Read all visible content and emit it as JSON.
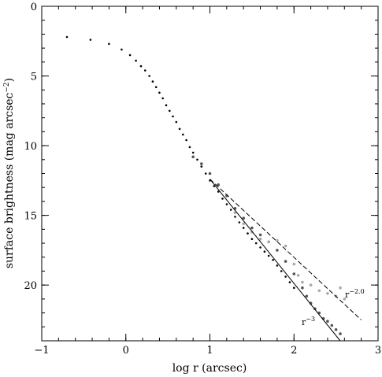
{
  "chart_data": {
    "type": "scatter",
    "title": "",
    "xlabel": "log r (arcsec)",
    "ylabel": "surface brightness (mag arcsec",
    "ylabel_sup": "−2",
    "ylabel_close": ")",
    "xlim": [
      -1,
      3
    ],
    "ylim": [
      24,
      0
    ],
    "y_inverted": true,
    "x_ticks": [
      -1,
      0,
      1,
      2,
      3
    ],
    "x_tick_labels": [
      "−1",
      "0",
      "1",
      "2",
      "3"
    ],
    "y_ticks": [
      0,
      5,
      10,
      15,
      20
    ],
    "y_tick_labels": [
      "0",
      "5",
      "10",
      "15",
      "20"
    ],
    "grid": false,
    "colors": {
      "inner": "#000000",
      "dark_scatter": "#555555",
      "light_scatter": "#aaaaaa",
      "reference_lines": "#000000"
    },
    "series": [
      {
        "style": "black-points",
        "points": [
          [
            -0.7,
            2.2
          ],
          [
            -0.42,
            2.4
          ],
          [
            -0.2,
            2.7
          ],
          [
            -0.05,
            3.1
          ],
          [
            0.05,
            3.5
          ],
          [
            0.12,
            3.9
          ],
          [
            0.18,
            4.3
          ],
          [
            0.23,
            4.6
          ],
          [
            0.28,
            5.0
          ],
          [
            0.32,
            5.4
          ],
          [
            0.36,
            5.8
          ],
          [
            0.4,
            6.2
          ],
          [
            0.44,
            6.6
          ],
          [
            0.48,
            7.1
          ],
          [
            0.52,
            7.5
          ],
          [
            0.56,
            7.9
          ],
          [
            0.6,
            8.3
          ],
          [
            0.64,
            8.8
          ],
          [
            0.68,
            9.2
          ],
          [
            0.72,
            9.6
          ],
          [
            0.76,
            10.1
          ],
          [
            0.8,
            10.5
          ],
          [
            0.85,
            11.0
          ],
          [
            0.9,
            11.5
          ],
          [
            0.95,
            12.0
          ],
          [
            1.0,
            12.5
          ],
          [
            1.05,
            12.9
          ],
          [
            1.1,
            13.3
          ],
          [
            1.15,
            13.8
          ],
          [
            1.2,
            14.2
          ],
          [
            1.25,
            14.6
          ],
          [
            1.3,
            15.1
          ],
          [
            1.35,
            15.5
          ],
          [
            1.4,
            15.9
          ],
          [
            1.45,
            16.3
          ],
          [
            1.5,
            16.7
          ],
          [
            1.55,
            17.0
          ],
          [
            1.6,
            17.3
          ],
          [
            1.65,
            17.6
          ],
          [
            1.7,
            17.9
          ],
          [
            1.75,
            18.2
          ],
          [
            1.8,
            18.6
          ],
          [
            1.85,
            19.0
          ],
          [
            1.9,
            19.4
          ],
          [
            1.95,
            19.8
          ],
          [
            2.0,
            20.2
          ]
        ]
      },
      {
        "style": "dark-gray-points",
        "points": [
          [
            0.8,
            10.8
          ],
          [
            0.9,
            11.3
          ],
          [
            1.0,
            12.0
          ],
          [
            1.1,
            12.8
          ],
          [
            1.2,
            13.6
          ],
          [
            1.3,
            14.5
          ],
          [
            1.4,
            15.2
          ],
          [
            1.5,
            15.9
          ],
          [
            1.6,
            16.4
          ],
          [
            1.7,
            16.9
          ],
          [
            1.8,
            17.5
          ],
          [
            1.9,
            18.3
          ],
          [
            2.0,
            19.2
          ],
          [
            2.1,
            20.2
          ],
          [
            2.15,
            20.8
          ],
          [
            2.2,
            21.3
          ],
          [
            2.25,
            21.7
          ],
          [
            2.3,
            22.0
          ],
          [
            2.35,
            22.4
          ],
          [
            2.4,
            22.6
          ],
          [
            2.45,
            22.9
          ],
          [
            2.5,
            23.2
          ],
          [
            2.55,
            23.5
          ]
        ]
      },
      {
        "style": "light-gray-points",
        "points": [
          [
            1.3,
            14.8
          ],
          [
            1.4,
            15.6
          ],
          [
            1.5,
            16.2
          ],
          [
            1.6,
            16.7
          ],
          [
            1.7,
            16.9
          ],
          [
            1.8,
            16.8
          ],
          [
            1.9,
            17.2
          ],
          [
            2.0,
            18.5
          ],
          [
            2.05,
            19.3
          ],
          [
            2.1,
            19.8
          ],
          [
            2.2,
            20.0
          ],
          [
            2.3,
            20.4
          ],
          [
            2.4,
            20.6
          ],
          [
            2.5,
            20.8
          ],
          [
            2.55,
            20.2
          ],
          [
            2.6,
            21.0
          ]
        ]
      }
    ],
    "reference_lines": [
      {
        "label": "r",
        "exponent": "−2.0",
        "style": "dashed",
        "from": [
          1.0,
          12.4
        ],
        "to": [
          2.8,
          22.5
        ]
      },
      {
        "label": "r",
        "exponent": "−3",
        "style": "solid",
        "from": [
          1.0,
          12.4
        ],
        "to": [
          2.55,
          24.0
        ]
      }
    ]
  }
}
